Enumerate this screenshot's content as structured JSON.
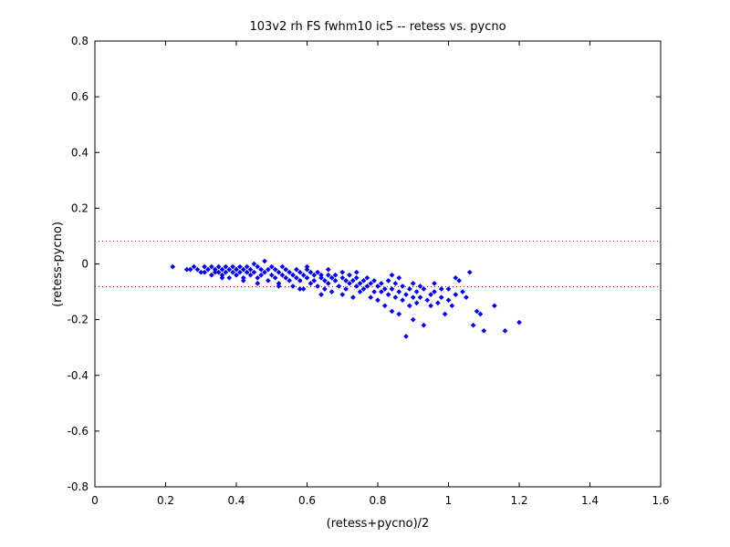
{
  "chart_data": {
    "type": "scatter",
    "title": "103v2 rh FS fwhm10 ic5 -- retess vs. pycno",
    "xlabel": "(retess+pycno)/2",
    "ylabel": "(retess-pycno)",
    "xlim": [
      0,
      1.6
    ],
    "ylim": [
      -0.8,
      0.8
    ],
    "xticks": [
      0,
      0.2,
      0.4,
      0.6,
      0.8,
      1,
      1.2,
      1.4,
      1.6
    ],
    "yticks": [
      -0.8,
      -0.6,
      -0.4,
      -0.2,
      0,
      0.2,
      0.4,
      0.6,
      0.8
    ],
    "xtick_labels": [
      "0",
      "0.2",
      "0.4",
      "0.6",
      "0.8",
      "1",
      "1.2",
      "1.4",
      "1.6"
    ],
    "ytick_labels": [
      "-0.8",
      "-0.6",
      "-0.4",
      "-0.2",
      "0",
      "0.2",
      "0.4",
      "0.6",
      "0.8"
    ],
    "grid": false,
    "marker_color": "#0000ff",
    "reference_line_color": "#ff0000",
    "reference_lines": [
      0.082,
      -0.082
    ],
    "points": [
      [
        0.22,
        -0.01
      ],
      [
        0.26,
        -0.02
      ],
      [
        0.27,
        -0.02
      ],
      [
        0.28,
        -0.01
      ],
      [
        0.29,
        -0.02
      ],
      [
        0.3,
        -0.03
      ],
      [
        0.31,
        -0.01
      ],
      [
        0.31,
        -0.03
      ],
      [
        0.32,
        -0.02
      ],
      [
        0.33,
        -0.01
      ],
      [
        0.33,
        -0.04
      ],
      [
        0.34,
        -0.02
      ],
      [
        0.34,
        -0.03
      ],
      [
        0.35,
        -0.01
      ],
      [
        0.35,
        -0.03
      ],
      [
        0.36,
        -0.02
      ],
      [
        0.36,
        -0.04
      ],
      [
        0.37,
        -0.01
      ],
      [
        0.37,
        -0.03
      ],
      [
        0.38,
        -0.02
      ],
      [
        0.38,
        -0.05
      ],
      [
        0.39,
        -0.01
      ],
      [
        0.39,
        -0.03
      ],
      [
        0.4,
        -0.02
      ],
      [
        0.4,
        -0.04
      ],
      [
        0.41,
        -0.01
      ],
      [
        0.41,
        -0.03
      ],
      [
        0.42,
        -0.02
      ],
      [
        0.42,
        -0.05
      ],
      [
        0.43,
        -0.01
      ],
      [
        0.43,
        -0.03
      ],
      [
        0.44,
        -0.02
      ],
      [
        0.44,
        -0.04
      ],
      [
        0.45,
        0.0
      ],
      [
        0.45,
        -0.03
      ],
      [
        0.46,
        -0.01
      ],
      [
        0.46,
        -0.05
      ],
      [
        0.47,
        -0.02
      ],
      [
        0.47,
        -0.04
      ],
      [
        0.48,
        0.01
      ],
      [
        0.48,
        -0.03
      ],
      [
        0.49,
        -0.02
      ],
      [
        0.49,
        -0.06
      ],
      [
        0.5,
        -0.01
      ],
      [
        0.5,
        -0.04
      ],
      [
        0.51,
        -0.02
      ],
      [
        0.51,
        -0.05
      ],
      [
        0.52,
        -0.03
      ],
      [
        0.52,
        -0.07
      ],
      [
        0.53,
        -0.01
      ],
      [
        0.53,
        -0.04
      ],
      [
        0.54,
        -0.02
      ],
      [
        0.54,
        -0.05
      ],
      [
        0.55,
        -0.03
      ],
      [
        0.55,
        -0.06
      ],
      [
        0.56,
        -0.04
      ],
      [
        0.56,
        -0.08
      ],
      [
        0.57,
        -0.02
      ],
      [
        0.57,
        -0.05
      ],
      [
        0.58,
        -0.03
      ],
      [
        0.58,
        -0.06
      ],
      [
        0.59,
        -0.04
      ],
      [
        0.59,
        -0.09
      ],
      [
        0.6,
        -0.02
      ],
      [
        0.6,
        -0.05
      ],
      [
        0.61,
        -0.03
      ],
      [
        0.61,
        -0.07
      ],
      [
        0.62,
        -0.04
      ],
      [
        0.62,
        -0.06
      ],
      [
        0.63,
        -0.03
      ],
      [
        0.63,
        -0.08
      ],
      [
        0.64,
        -0.05
      ],
      [
        0.64,
        -0.04
      ],
      [
        0.65,
        -0.06
      ],
      [
        0.65,
        -0.09
      ],
      [
        0.66,
        -0.04
      ],
      [
        0.66,
        -0.07
      ],
      [
        0.67,
        -0.05
      ],
      [
        0.67,
        -0.1
      ],
      [
        0.68,
        -0.06
      ],
      [
        0.68,
        -0.04
      ],
      [
        0.69,
        -0.08
      ],
      [
        0.7,
        -0.05
      ],
      [
        0.7,
        -0.11
      ],
      [
        0.71,
        -0.06
      ],
      [
        0.71,
        -0.09
      ],
      [
        0.72,
        -0.04
      ],
      [
        0.72,
        -0.07
      ],
      [
        0.73,
        -0.06
      ],
      [
        0.73,
        -0.12
      ],
      [
        0.74,
        -0.05
      ],
      [
        0.74,
        -0.08
      ],
      [
        0.75,
        -0.07
      ],
      [
        0.75,
        -0.1
      ],
      [
        0.76,
        -0.06
      ],
      [
        0.76,
        -0.09
      ],
      [
        0.77,
        -0.05
      ],
      [
        0.77,
        -0.08
      ],
      [
        0.78,
        -0.07
      ],
      [
        0.78,
        -0.12
      ],
      [
        0.79,
        -0.06
      ],
      [
        0.79,
        -0.1
      ],
      [
        0.8,
        -0.08
      ],
      [
        0.8,
        -0.13
      ],
      [
        0.81,
        -0.07
      ],
      [
        0.81,
        -0.1
      ],
      [
        0.82,
        -0.09
      ],
      [
        0.82,
        -0.15
      ],
      [
        0.83,
        -0.06
      ],
      [
        0.83,
        -0.11
      ],
      [
        0.84,
        -0.09
      ],
      [
        0.84,
        -0.17
      ],
      [
        0.85,
        -0.07
      ],
      [
        0.85,
        -0.12
      ],
      [
        0.86,
        -0.1
      ],
      [
        0.86,
        -0.18
      ],
      [
        0.87,
        -0.08
      ],
      [
        0.87,
        -0.13
      ],
      [
        0.88,
        -0.26
      ],
      [
        0.88,
        -0.11
      ],
      [
        0.89,
        -0.09
      ],
      [
        0.89,
        -0.15
      ],
      [
        0.9,
        -0.12
      ],
      [
        0.9,
        -0.2
      ],
      [
        0.91,
        -0.1
      ],
      [
        0.91,
        -0.14
      ],
      [
        0.92,
        -0.12
      ],
      [
        0.93,
        -0.22
      ],
      [
        0.93,
        -0.09
      ],
      [
        0.94,
        -0.13
      ],
      [
        0.95,
        -0.11
      ],
      [
        0.95,
        -0.15
      ],
      [
        0.96,
        -0.1
      ],
      [
        0.97,
        -0.14
      ],
      [
        0.98,
        -0.12
      ],
      [
        0.99,
        -0.18
      ],
      [
        1.0,
        -0.09
      ],
      [
        1.0,
        -0.13
      ],
      [
        1.01,
        -0.15
      ],
      [
        1.02,
        -0.11
      ],
      [
        1.03,
        -0.06
      ],
      [
        1.04,
        -0.1
      ],
      [
        1.05,
        -0.12
      ],
      [
        1.06,
        -0.03
      ],
      [
        1.07,
        -0.22
      ],
      [
        1.08,
        -0.17
      ],
      [
        1.09,
        -0.18
      ],
      [
        1.1,
        -0.24
      ],
      [
        1.13,
        -0.15
      ],
      [
        1.16,
        -0.24
      ],
      [
        1.2,
        -0.21
      ],
      [
        0.84,
        -0.04
      ],
      [
        0.86,
        -0.05
      ],
      [
        0.9,
        -0.07
      ],
      [
        0.92,
        -0.08
      ],
      [
        0.96,
        -0.07
      ],
      [
        0.98,
        -0.09
      ],
      [
        1.02,
        -0.05
      ],
      [
        0.64,
        -0.11
      ],
      [
        0.58,
        -0.09
      ],
      [
        0.52,
        -0.08
      ],
      [
        0.46,
        -0.07
      ],
      [
        0.42,
        -0.06
      ],
      [
        0.36,
        -0.05
      ],
      [
        0.6,
        -0.01
      ],
      [
        0.66,
        -0.02
      ],
      [
        0.7,
        -0.03
      ],
      [
        0.74,
        -0.03
      ]
    ]
  }
}
